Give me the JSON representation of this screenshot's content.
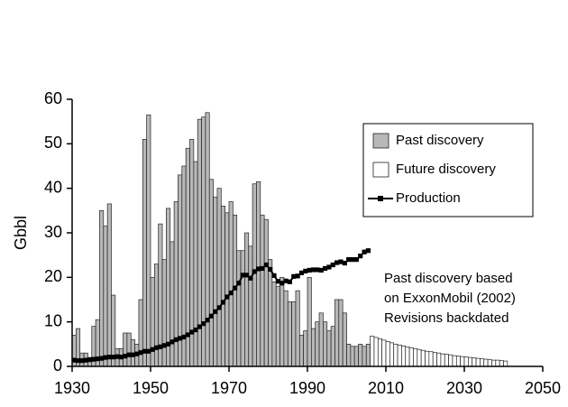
{
  "chart_data": {
    "type": "bar",
    "ylabel": "Gbbl",
    "xlim": [
      1930,
      2050
    ],
    "xticks": [
      1930,
      1950,
      1970,
      1990,
      2010,
      2030,
      2050
    ],
    "ylim": [
      0,
      60
    ],
    "yticks": [
      0,
      10,
      20,
      30,
      40,
      50,
      60
    ],
    "legend": "upper right",
    "annotation": [
      "Past discovery based",
      "on ExxonMobil (2002)",
      "Revisions backdated"
    ],
    "series": [
      {
        "name": "Past discovery",
        "type": "bar",
        "color": "#b8b8b8",
        "x": [
          1930,
          1931,
          1932,
          1933,
          1934,
          1935,
          1936,
          1937,
          1938,
          1939,
          1940,
          1941,
          1942,
          1943,
          1944,
          1945,
          1946,
          1947,
          1948,
          1949,
          1950,
          1951,
          1952,
          1953,
          1954,
          1955,
          1956,
          1957,
          1958,
          1959,
          1960,
          1961,
          1962,
          1963,
          1964,
          1965,
          1966,
          1967,
          1968,
          1969,
          1970,
          1971,
          1972,
          1973,
          1974,
          1975,
          1976,
          1977,
          1978,
          1979,
          1980,
          1981,
          1982,
          1983,
          1984,
          1985,
          1986,
          1987,
          1988,
          1989,
          1990,
          1991,
          1992,
          1993,
          1994,
          1995,
          1996,
          1997,
          1998,
          1999,
          2000,
          2001,
          2002,
          2003,
          2004,
          2005
        ],
        "values": [
          7,
          8.5,
          3,
          3,
          2,
          9,
          10.5,
          35,
          31.5,
          36.5,
          16,
          4,
          4,
          7.5,
          7.5,
          6,
          5,
          15,
          51,
          56.5,
          20,
          23,
          32,
          24,
          35.5,
          28,
          37,
          43,
          45,
          49,
          51,
          46,
          55.5,
          56,
          57,
          42,
          38,
          40,
          36,
          34.5,
          37,
          34,
          26,
          26,
          30,
          27,
          41,
          41.5,
          34,
          33,
          24,
          19,
          18,
          20,
          17,
          14.5,
          14.5,
          17,
          7,
          8,
          20,
          8.5,
          10,
          12,
          10,
          8,
          9,
          15,
          15,
          12,
          5,
          4.5,
          4.5,
          5,
          4.5,
          5
        ]
      },
      {
        "name": "Future discovery",
        "type": "bar",
        "color": "#ffffff",
        "x": [
          2006,
          2007,
          2008,
          2009,
          2010,
          2011,
          2012,
          2013,
          2014,
          2015,
          2016,
          2017,
          2018,
          2019,
          2020,
          2021,
          2022,
          2023,
          2024,
          2025,
          2026,
          2027,
          2028,
          2029,
          2030,
          2031,
          2032,
          2033,
          2034,
          2035,
          2036,
          2037,
          2038,
          2039,
          2040
        ],
        "values": [
          6.8,
          6.5,
          6.2,
          5.9,
          5.6,
          5.3,
          5.0,
          4.8,
          4.6,
          4.4,
          4.2,
          4.0,
          3.8,
          3.6,
          3.4,
          3.3,
          3.1,
          3.0,
          2.8,
          2.7,
          2.6,
          2.4,
          2.3,
          2.2,
          2.1,
          2.0,
          1.9,
          1.8,
          1.7,
          1.6,
          1.5,
          1.4,
          1.4,
          1.3,
          1.2
        ]
      },
      {
        "name": "Production",
        "type": "line",
        "color": "#000000",
        "x": [
          1930,
          1931,
          1932,
          1933,
          1934,
          1935,
          1936,
          1937,
          1938,
          1939,
          1940,
          1941,
          1942,
          1943,
          1944,
          1945,
          1946,
          1947,
          1948,
          1949,
          1950,
          1951,
          1952,
          1953,
          1954,
          1955,
          1956,
          1957,
          1958,
          1959,
          1960,
          1961,
          1962,
          1963,
          1964,
          1965,
          1966,
          1967,
          1968,
          1969,
          1970,
          1971,
          1972,
          1973,
          1974,
          1975,
          1976,
          1977,
          1978,
          1979,
          1980,
          1981,
          1982,
          1983,
          1984,
          1985,
          1986,
          1987,
          1988,
          1989,
          1990,
          1991,
          1992,
          1993,
          1994,
          1995,
          1996,
          1997,
          1998,
          1999,
          2000,
          2001,
          2002,
          2003,
          2004,
          2005
        ],
        "values": [
          1.4,
          1.3,
          1.3,
          1.4,
          1.5,
          1.6,
          1.7,
          1.8,
          2.0,
          2.1,
          2.1,
          2.2,
          2.1,
          2.3,
          2.6,
          2.6,
          2.8,
          3.1,
          3.4,
          3.4,
          3.8,
          4.2,
          4.4,
          4.7,
          5.0,
          5.5,
          6.0,
          6.3,
          6.6,
          7.1,
          7.7,
          8.2,
          8.9,
          9.6,
          10.4,
          11.3,
          12.3,
          13.2,
          14.4,
          15.6,
          16.5,
          17.6,
          18.7,
          20.5,
          20.5,
          19.8,
          21.3,
          21.9,
          22.0,
          22.8,
          21.8,
          20.4,
          19.1,
          18.7,
          19.2,
          19.0,
          20.2,
          20.3,
          21.0,
          21.4,
          21.6,
          21.7,
          21.7,
          21.6,
          22.0,
          22.3,
          22.8,
          23.3,
          23.5,
          23.2,
          24.0,
          24.0,
          24.0,
          24.8,
          25.7,
          26.0
        ]
      }
    ]
  }
}
